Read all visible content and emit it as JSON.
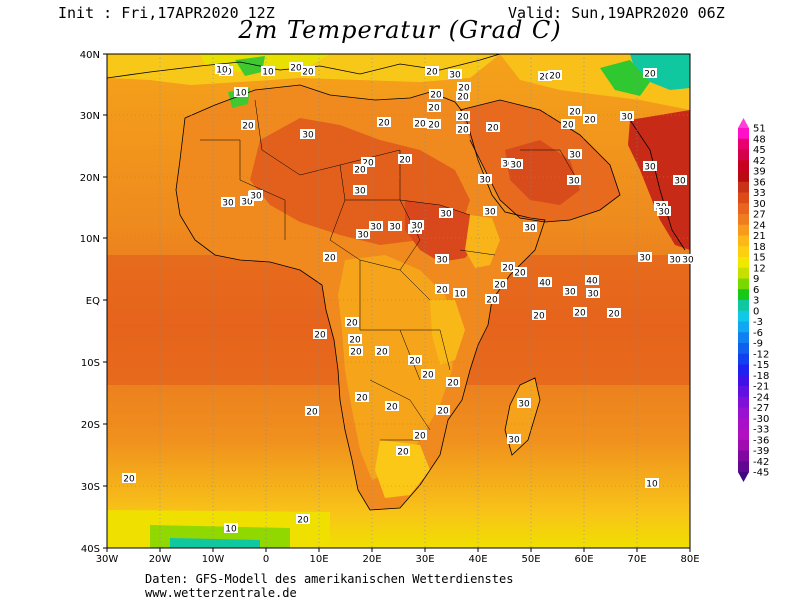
{
  "header": {
    "init": "Init : Fri,17APR2020 12Z",
    "valid": "Valid: Sun,19APR2020 06Z",
    "title": "2m Temperatur (Grad C)"
  },
  "axes": {
    "lat_labels": [
      "40N",
      "30N",
      "20N",
      "10N",
      "EQ",
      "10S",
      "20S",
      "30S",
      "40S"
    ],
    "lon_labels": [
      "30W",
      "20W",
      "10W",
      "0",
      "10E",
      "20E",
      "30E",
      "40E",
      "50E",
      "60E",
      "70E",
      "80E"
    ]
  },
  "colorbar": {
    "levels": [
      "51",
      "48",
      "45",
      "42",
      "39",
      "36",
      "33",
      "30",
      "27",
      "24",
      "21",
      "18",
      "15",
      "12",
      "9",
      "6",
      "3",
      "0",
      "-3",
      "-6",
      "-9",
      "-12",
      "-15",
      "-18",
      "-21",
      "-24",
      "-27",
      "-30",
      "-33",
      "-36",
      "-39",
      "-42",
      "-45"
    ],
    "colors": [
      "#ff10c8",
      "#e8006e",
      "#d4004a",
      "#c80020",
      "#b80a10",
      "#c83218",
      "#dc4a18",
      "#e86420",
      "#f07c20",
      "#f89a1c",
      "#fcb818",
      "#fcd010",
      "#f0e800",
      "#c8e000",
      "#78d800",
      "#18c818",
      "#10c8a0",
      "#10c8e8",
      "#10a8f0",
      "#1080f0",
      "#1060f0",
      "#1040f0",
      "#2020f0",
      "#4010e8",
      "#6010e0",
      "#8010d8",
      "#9810d0",
      "#a810c8",
      "#b010c0",
      "#a00cb0",
      "#8008a0",
      "#600890"
    ]
  },
  "map_labels": [
    {
      "text": "10"
    },
    {
      "text": "10"
    },
    {
      "text": "20"
    },
    {
      "text": "20"
    },
    {
      "text": "10"
    },
    {
      "text": "30"
    },
    {
      "text": "20"
    },
    {
      "text": "20"
    },
    {
      "text": "30"
    },
    {
      "text": "20"
    },
    {
      "text": "20"
    },
    {
      "text": "30"
    },
    {
      "text": "30"
    },
    {
      "text": "20"
    },
    {
      "text": "30"
    },
    {
      "text": "30"
    },
    {
      "text": "30"
    },
    {
      "text": "30"
    },
    {
      "text": "20"
    },
    {
      "text": "30"
    },
    {
      "text": "30"
    },
    {
      "text": "30"
    },
    {
      "text": "30"
    },
    {
      "text": "30"
    },
    {
      "text": "30"
    },
    {
      "text": "30"
    },
    {
      "text": "30"
    },
    {
      "text": "30"
    },
    {
      "text": "20"
    },
    {
      "text": "30"
    },
    {
      "text": "20"
    },
    {
      "text": "30"
    },
    {
      "text": "30"
    },
    {
      "text": "20"
    },
    {
      "text": "20"
    },
    {
      "text": "20"
    },
    {
      "text": "20"
    },
    {
      "text": "20"
    },
    {
      "text": "20"
    },
    {
      "text": "20"
    },
    {
      "text": "20"
    },
    {
      "text": "20"
    },
    {
      "text": "20"
    },
    {
      "text": "20"
    },
    {
      "text": "20"
    },
    {
      "text": "20"
    },
    {
      "text": "20"
    },
    {
      "text": "20"
    },
    {
      "text": "20"
    },
    {
      "text": "20"
    },
    {
      "text": "20"
    },
    {
      "text": "20"
    },
    {
      "text": "20"
    },
    {
      "text": "20"
    },
    {
      "text": "20"
    },
    {
      "text": "20"
    },
    {
      "text": "20"
    },
    {
      "text": "20"
    },
    {
      "text": "30"
    },
    {
      "text": "30"
    },
    {
      "text": "30"
    },
    {
      "text": "30"
    },
    {
      "text": "30"
    },
    {
      "text": "30"
    },
    {
      "text": "30"
    },
    {
      "text": "30"
    },
    {
      "text": "30"
    },
    {
      "text": "30"
    },
    {
      "text": "40"
    },
    {
      "text": "40"
    },
    {
      "text": "30"
    },
    {
      "text": "30"
    },
    {
      "text": "20"
    },
    {
      "text": "20"
    },
    {
      "text": "20"
    },
    {
      "text": "20"
    },
    {
      "text": "20"
    },
    {
      "text": "20"
    },
    {
      "text": "20"
    },
    {
      "text": "10"
    },
    {
      "text": "20"
    },
    {
      "text": "20"
    },
    {
      "text": "20"
    },
    {
      "text": "30"
    },
    {
      "text": "30"
    },
    {
      "text": "20"
    },
    {
      "text": "10"
    },
    {
      "text": "10"
    },
    {
      "text": "10"
    },
    {
      "text": "20"
    },
    {
      "text": "20"
    }
  ],
  "footer": {
    "line1": "Daten: GFS-Modell des amerikanischen Wetterdienstes",
    "line2": "www.wetterzentrale.de"
  }
}
